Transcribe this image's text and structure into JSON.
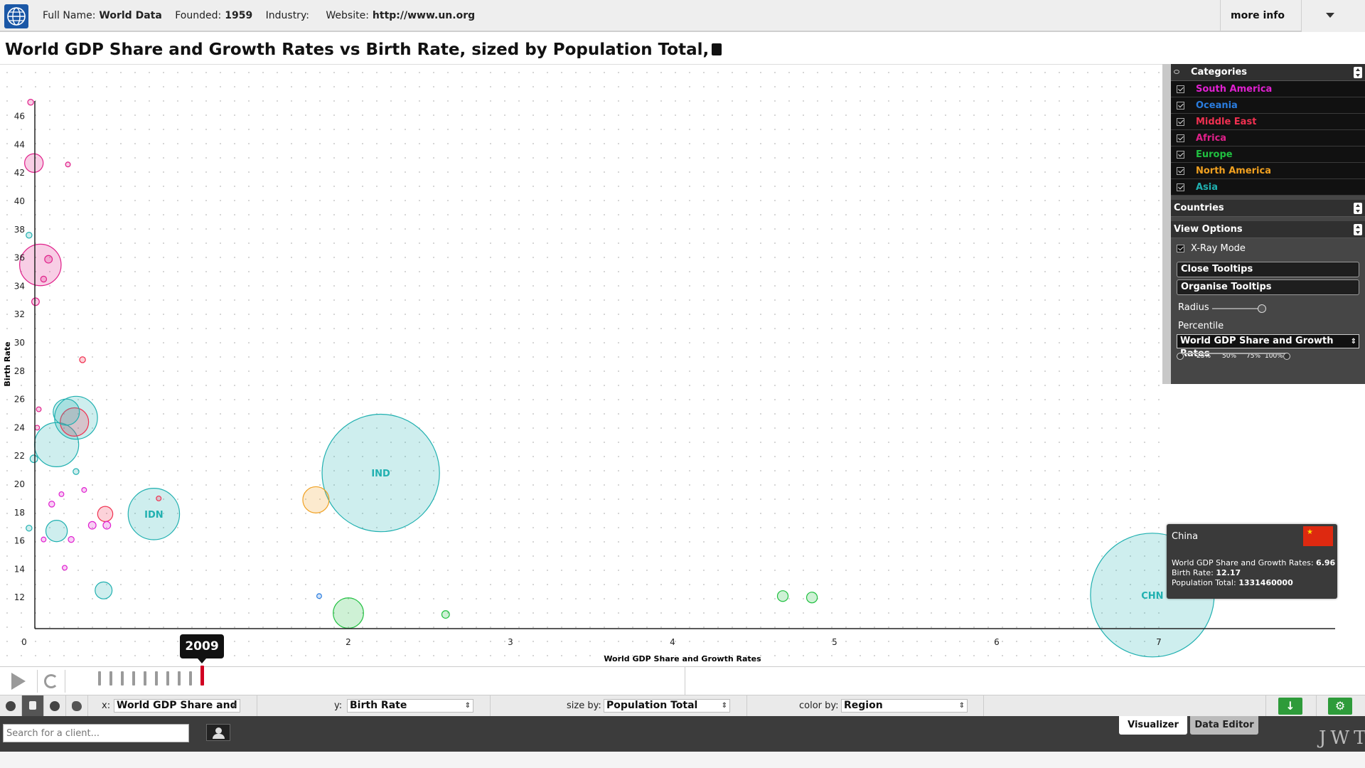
{
  "header": {
    "full_name_label": "Full Name:",
    "full_name": "World Data",
    "founded_label": "Founded:",
    "founded": "1959",
    "industry_label": "Industry:",
    "industry": "",
    "website_label": "Website:",
    "website": "http://www.un.org",
    "more_info": "more info",
    "logo_icon": "globe-icon",
    "accent": "#1a57a6"
  },
  "title": "World GDP Share and Growth Rates vs Birth Rate, sized by Population Total,",
  "panel": {
    "categories_title": "Categories",
    "categories": [
      {
        "label": "South America",
        "color": "#e020d0"
      },
      {
        "label": "Oceania",
        "color": "#2a7de0"
      },
      {
        "label": "Middle East",
        "color": "#f03050"
      },
      {
        "label": "Africa",
        "color": "#e0208a"
      },
      {
        "label": "Europe",
        "color": "#20c040"
      },
      {
        "label": "North America",
        "color": "#f0a020"
      },
      {
        "label": "Asia",
        "color": "#20b0b0"
      }
    ],
    "countries_title": "Countries",
    "view_options_title": "View Options",
    "xray_label": "X-Ray Mode",
    "close_tooltips": "Close Tooltips",
    "organise_tooltips": "Organise Tooltips",
    "radius_label": "Radius",
    "percentile_label": "Percentile",
    "percentile_value": "World GDP Share and Growth Rates",
    "percentile_ticks": [
      "0",
      "25%",
      "50%",
      "75%",
      "100%"
    ]
  },
  "tooltip": {
    "country": "China",
    "line1_label": "World GDP Share and Growth Rates:",
    "line1_value": "6.96",
    "line2_label": "Birth Rate:",
    "line2_value": "12.17",
    "line3_label": "Population Total:",
    "line3_value": "1331460000"
  },
  "timeline": {
    "year": "2009"
  },
  "controls": {
    "x_label": "x:",
    "x_value": "World GDP Share and ...",
    "y_label": "y:",
    "y_value": "Birth Rate",
    "size_label": "size by:",
    "size_value": "Population Total",
    "color_label": "color by:",
    "color_value": "Region"
  },
  "bottom": {
    "search_placeholder": "Search for a client...",
    "tab_visualizer": "Visualizer",
    "tab_data_editor": "Data Editor",
    "brand": "JWT"
  },
  "chart_data": {
    "type": "scatter",
    "title": "World GDP Share and Growth Rates vs Birth Rate, sized by Population Total,",
    "xlabel": "World GDP Share and Growth Rates",
    "ylabel": "Birth Rate",
    "xlim": [
      0,
      8.1
    ],
    "ylim": [
      9.8,
      47.8
    ],
    "x_ticks": [
      0,
      2,
      3,
      4,
      5,
      6,
      7
    ],
    "y_ticks": [
      12,
      14,
      16,
      18,
      20,
      22,
      24,
      26,
      28,
      30,
      32,
      34,
      36,
      38,
      40,
      42,
      44,
      46
    ],
    "grid": true,
    "series": [
      {
        "name": "Asia",
        "color": "#20b0b0",
        "points": [
          {
            "x": 2.2,
            "y": 20.8,
            "size": 1200000000,
            "label": "IND"
          },
          {
            "x": 6.96,
            "y": 12.17,
            "size": 1331460000,
            "label": "CHN"
          },
          {
            "x": 0.8,
            "y": 17.9,
            "size": 230000000,
            "label": "IDN"
          },
          {
            "x": 0.2,
            "y": 22.8,
            "size": 170000000
          },
          {
            "x": 0.32,
            "y": 24.7,
            "size": 160000000
          },
          {
            "x": 0.26,
            "y": 25.1,
            "size": 60000000
          },
          {
            "x": 0.2,
            "y": 16.7,
            "size": 40000000
          },
          {
            "x": 0.49,
            "y": 12.5,
            "size": 25000000
          },
          {
            "x": 0.06,
            "y": 21.8,
            "size": 5000000
          },
          {
            "x": 0.03,
            "y": 37.6,
            "size": 3000000
          },
          {
            "x": 0.32,
            "y": 20.9,
            "size": 3000000
          },
          {
            "x": 0.03,
            "y": 16.9,
            "size": 3000000
          }
        ]
      },
      {
        "name": "Europe",
        "color": "#20c040",
        "points": [
          {
            "x": 2.0,
            "y": 10.9,
            "size": 80000000
          },
          {
            "x": 4.68,
            "y": 12.1,
            "size": 10000000
          },
          {
            "x": 4.86,
            "y": 12.0,
            "size": 10000000
          },
          {
            "x": 2.6,
            "y": 10.8,
            "size": 5000000
          }
        ]
      },
      {
        "name": "North America",
        "color": "#f0a020",
        "points": [
          {
            "x": 1.8,
            "y": 18.9,
            "size": 60000000
          }
        ]
      },
      {
        "name": "Africa",
        "color": "#e0208a",
        "points": [
          {
            "x": 0.1,
            "y": 35.5,
            "size": 150000000
          },
          {
            "x": 0.06,
            "y": 42.7,
            "size": 30000000
          },
          {
            "x": 0.04,
            "y": 47.0,
            "size": 3000000
          },
          {
            "x": 0.15,
            "y": 35.9,
            "size": 5000000
          },
          {
            "x": 0.12,
            "y": 34.5,
            "size": 3000000
          },
          {
            "x": 0.07,
            "y": 32.9,
            "size": 5000000
          },
          {
            "x": 0.27,
            "y": 42.6,
            "size": 2000000
          },
          {
            "x": 0.09,
            "y": 25.3,
            "size": 2000000
          },
          {
            "x": 0.08,
            "y": 24.0,
            "size": 2000000
          }
        ]
      },
      {
        "name": "Middle East",
        "color": "#f03050",
        "points": [
          {
            "x": 0.31,
            "y": 24.4,
            "size": 70000000
          },
          {
            "x": 0.5,
            "y": 17.9,
            "size": 20000000
          },
          {
            "x": 0.36,
            "y": 28.8,
            "size": 3000000
          },
          {
            "x": 0.83,
            "y": 19.0,
            "size": 2000000
          }
        ]
      },
      {
        "name": "South America",
        "color": "#e020d0",
        "points": [
          {
            "x": 0.51,
            "y": 17.1,
            "size": 5000000
          },
          {
            "x": 0.42,
            "y": 17.1,
            "size": 5000000
          },
          {
            "x": 0.29,
            "y": 16.1,
            "size": 3000000
          },
          {
            "x": 0.17,
            "y": 18.6,
            "size": 3000000
          },
          {
            "x": 0.12,
            "y": 16.1,
            "size": 2000000
          },
          {
            "x": 0.23,
            "y": 19.3,
            "size": 2000000
          },
          {
            "x": 0.37,
            "y": 19.6,
            "size": 2000000
          },
          {
            "x": 0.25,
            "y": 14.1,
            "size": 2000000
          }
        ]
      },
      {
        "name": "Oceania",
        "color": "#2a7de0",
        "points": [
          {
            "x": 1.82,
            "y": 12.1,
            "size": 2000000
          }
        ]
      }
    ]
  }
}
